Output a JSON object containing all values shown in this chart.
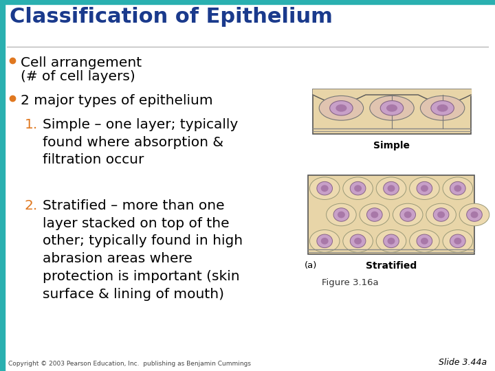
{
  "title": "Classification of Epithelium",
  "title_color": "#1a3a8c",
  "title_fontsize": 22,
  "background_color": "#ffffff",
  "top_bar_color": "#2ab0b0",
  "left_bar_color": "#2ab0b0",
  "bullet_color": "#e07820",
  "bullet1_line1": "Cell arrangement",
  "bullet1_line2": "(# of cell layers)",
  "bullet2": "2 major types of epithelium",
  "item1_num": "1.",
  "item1_text": "Simple – one layer; typically\nfound where absorption &\nfiltration occur",
  "item2_num": "2.",
  "item2_text": "Stratified – more than one\nlayer stacked on top of the\nother; typically found in high\nabrasion areas where\nprotection is important (skin\nsurface & lining of mouth)",
  "number_color": "#e07820",
  "text_color": "#000000",
  "body_fontsize": 14.5,
  "sub_fontsize": 14.5,
  "copyright_text": "Copyright © 2003 Pearson Education, Inc.  publishing as Benjamin Cummings",
  "slide_ref": "Slide 3.44a",
  "figure_caption": "Figure 3.16a",
  "figure_label": "(a)",
  "simple_label": "Simple",
  "stratified_label": "Stratified",
  "top_bar_height": 6,
  "left_bar_width": 7
}
